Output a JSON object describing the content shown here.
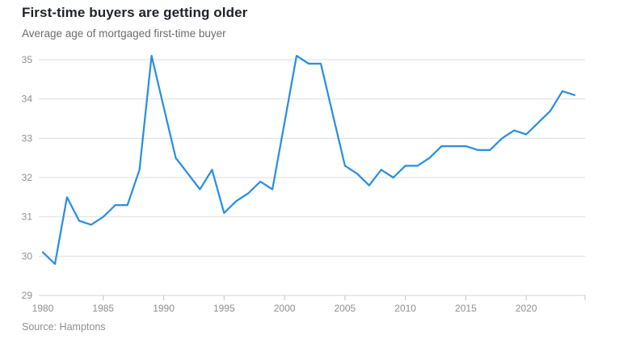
{
  "header": {
    "title": "First-time buyers are getting older",
    "subtitle": "Average age of mortgaged first-time buyer"
  },
  "footer": {
    "source": "Source: Hamptons"
  },
  "colors": {
    "line": "#2b8ee2",
    "grid": "#dedede",
    "axis_text": "#8e8f93",
    "title_text": "#20222a",
    "subtitle_text": "#6b6c70"
  },
  "chart_data": {
    "type": "line",
    "title": "First-time buyers are getting older",
    "subtitle": "Average age of mortgaged first-time buyer",
    "source": "Source: Hamptons",
    "xlabel": "",
    "ylabel": "",
    "xlim": [
      1980,
      2024
    ],
    "ylim": [
      29,
      35
    ],
    "grid": "horizontal",
    "legend": "none",
    "x_ticks": [
      1980,
      1985,
      1990,
      1995,
      2000,
      2005,
      2010,
      2015,
      2020
    ],
    "y_ticks": [
      29,
      30,
      31,
      32,
      33,
      34,
      35
    ],
    "series": [
      {
        "name": "Average age of mortgaged first-time buyer",
        "color": "#2b8ee2",
        "x": [
          1980,
          1981,
          1982,
          1983,
          1984,
          1985,
          1986,
          1987,
          1988,
          1989,
          1990,
          1991,
          1992,
          1993,
          1994,
          1995,
          1996,
          1997,
          1998,
          1999,
          2000,
          2001,
          2002,
          2003,
          2004,
          2005,
          2006,
          2007,
          2008,
          2009,
          2010,
          2011,
          2012,
          2013,
          2014,
          2015,
          2016,
          2017,
          2018,
          2019,
          2020,
          2021,
          2022,
          2023,
          2024
        ],
        "values": [
          30.1,
          29.8,
          31.5,
          30.9,
          30.8,
          31.0,
          31.3,
          31.3,
          32.2,
          35.1,
          33.8,
          32.5,
          32.1,
          31.7,
          32.2,
          31.1,
          31.4,
          31.6,
          31.9,
          31.7,
          33.4,
          35.1,
          34.9,
          34.9,
          33.6,
          32.3,
          32.1,
          31.8,
          32.2,
          32.0,
          32.3,
          32.3,
          32.5,
          32.8,
          32.8,
          32.8,
          32.7,
          32.7,
          33.0,
          33.2,
          33.1,
          33.4,
          33.7,
          34.2,
          34.1
        ]
      }
    ]
  }
}
